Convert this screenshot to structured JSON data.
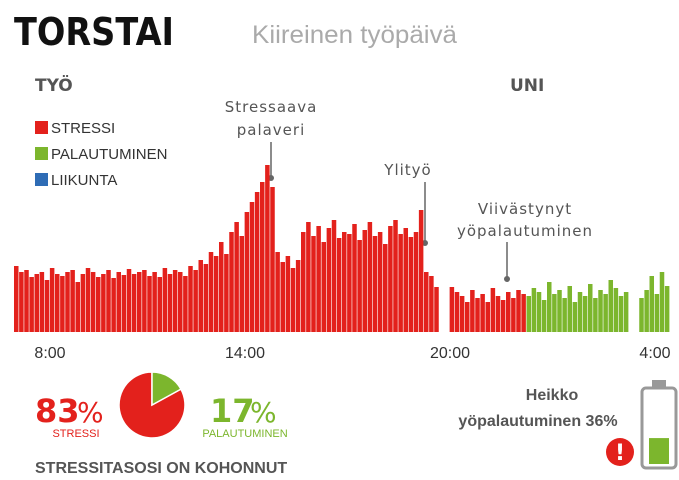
{
  "chart_data": [
    {
      "type": "bar",
      "title": "TORSTAI",
      "subtitle": "Kiireinen työpäivä",
      "section_labels": [
        "TYÖ",
        "UNI"
      ],
      "xtick_labels": [
        "8:00",
        "14:00",
        "20:00",
        "4:00"
      ],
      "annotations": [
        [
          "Stressaava",
          "palaveri"
        ],
        [
          "Ylityö"
        ],
        [
          "Viivästynyt",
          "yöpalautuminen"
        ]
      ],
      "ylim": [
        0,
        180
      ],
      "series": [
        {
          "name": "STRESSI",
          "color": "#e3211c",
          "values": [
            66,
            60,
            62,
            55,
            58,
            60,
            52,
            64,
            58,
            56,
            60,
            62,
            50,
            58,
            64,
            60,
            55,
            58,
            62,
            54,
            60,
            57,
            63,
            58,
            60,
            62,
            56,
            60,
            55,
            64,
            58,
            62,
            60,
            56,
            66,
            62,
            72,
            68,
            80,
            76,
            90,
            78,
            100,
            110,
            96,
            120,
            130,
            140,
            150,
            167,
            145,
            80,
            70,
            76,
            64,
            72,
            100,
            110,
            96,
            106,
            90,
            104,
            112,
            94,
            100,
            98,
            108,
            92,
            102,
            110,
            96,
            100,
            88,
            106,
            112,
            98,
            104,
            95,
            100,
            122,
            60,
            56,
            45,
            null,
            null,
            45,
            40,
            36,
            30,
            42,
            34,
            38,
            30,
            44,
            36,
            32,
            40,
            34,
            42,
            38,
            null,
            null,
            null,
            null,
            null,
            null,
            null,
            null,
            null,
            null,
            null,
            null,
            null,
            null,
            null,
            null,
            null,
            null,
            null,
            null,
            null,
            null,
            null,
            null,
            null,
            null,
            null,
            null
          ]
        },
        {
          "name": "PALAUTUMINEN",
          "color": "#7cb62d",
          "values": [
            null,
            null,
            null,
            null,
            null,
            null,
            null,
            null,
            null,
            null,
            null,
            null,
            null,
            null,
            null,
            null,
            null,
            null,
            null,
            null,
            null,
            null,
            null,
            null,
            null,
            null,
            null,
            null,
            null,
            null,
            null,
            null,
            null,
            null,
            null,
            null,
            null,
            null,
            null,
            null,
            null,
            null,
            null,
            null,
            null,
            null,
            null,
            null,
            null,
            null,
            null,
            null,
            null,
            null,
            null,
            null,
            null,
            null,
            null,
            null,
            null,
            null,
            null,
            null,
            null,
            null,
            null,
            null,
            null,
            null,
            null,
            null,
            null,
            null,
            null,
            null,
            null,
            null,
            null,
            null,
            null,
            null,
            null,
            null,
            null,
            null,
            null,
            null,
            null,
            null,
            null,
            null,
            null,
            null,
            null,
            null,
            null,
            null,
            null,
            null,
            36,
            44,
            40,
            32,
            50,
            38,
            42,
            34,
            46,
            30,
            40,
            36,
            48,
            34,
            42,
            38,
            52,
            44,
            36,
            40,
            null,
            null,
            34,
            42,
            56,
            38,
            60,
            46
          ]
        },
        {
          "name": "LIIKUNTA",
          "color": "#2e6cb5",
          "values": [
            null,
            null,
            null,
            null,
            null,
            null,
            null,
            null,
            null,
            null,
            null,
            null,
            null,
            null,
            null,
            null,
            null,
            null,
            null,
            null,
            null,
            null,
            null,
            null,
            null,
            null,
            null,
            null,
            null,
            null,
            null,
            null,
            null,
            null,
            null,
            null,
            null,
            null,
            null,
            null,
            null,
            null,
            null,
            null,
            null,
            null,
            null,
            null,
            null,
            null,
            null,
            null,
            null,
            null,
            null,
            null,
            null,
            null,
            null,
            null,
            null,
            null,
            null,
            null,
            null,
            null,
            null,
            null,
            null,
            null,
            null,
            null,
            null,
            null,
            null,
            null,
            null,
            null,
            null,
            null,
            null,
            null,
            null,
            null,
            null,
            null,
            null,
            null,
            null,
            null,
            null,
            null,
            null,
            null,
            null,
            null,
            null,
            null,
            null,
            null,
            null,
            null,
            null,
            null,
            null,
            null,
            null,
            null,
            null,
            null,
            null,
            null,
            null,
            null,
            null,
            null,
            null,
            null,
            null,
            null,
            null,
            null,
            null,
            null,
            null,
            null,
            null,
            null
          ]
        }
      ]
    },
    {
      "type": "pie",
      "categories": [
        "STRESSI",
        "PALAUTUMINEN"
      ],
      "values": [
        83,
        17
      ],
      "unit": "%",
      "colors": [
        "#e3211c",
        "#7cb62d"
      ],
      "caption": "STRESSITASOSI ON KOHONNUT"
    }
  ],
  "summary": {
    "lines": [
      "Heikko",
      "yöpalautuminen 36%"
    ],
    "value": 36,
    "icon": "!"
  }
}
